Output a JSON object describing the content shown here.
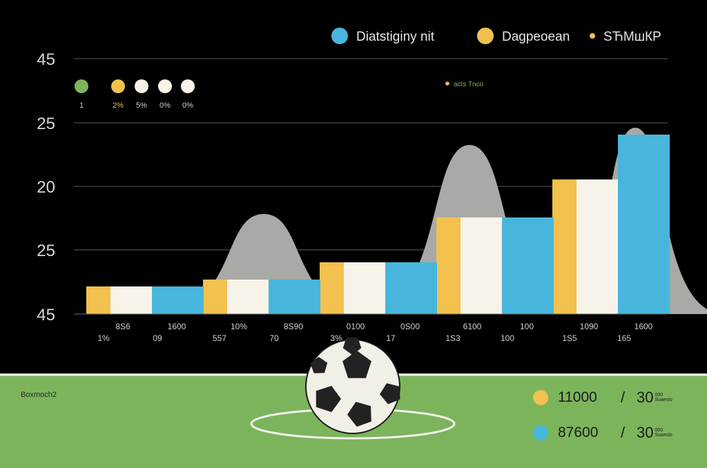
{
  "chart_data": {
    "type": "bar",
    "title": "",
    "xlabel": "",
    "ylabel": "",
    "y_tick_labels": [
      "45",
      "25",
      "20",
      "25",
      "45"
    ],
    "grid": true,
    "legend_position": "top-right",
    "legend": [
      {
        "label": "Diatstigіny nit",
        "color": "#48b6dc"
      },
      {
        "label": "Dagpeoean",
        "color": "#f0c150"
      },
      {
        "label": "ЅЋMшКР",
        "color": "#f0c150"
      }
    ],
    "series": [
      {
        "name": "",
        "color": "#f2c14e",
        "values": [
          0.8,
          1.0,
          1.5,
          2.8,
          3.9
        ]
      },
      {
        "name": "",
        "color": "#f7f3e8",
        "values": [
          0.8,
          1.0,
          1.5,
          2.8,
          3.9
        ]
      },
      {
        "name": "",
        "color": "#48b6dc",
        "values": [
          0.8,
          1.0,
          1.5,
          2.8,
          5.2
        ]
      }
    ],
    "peaks": [
      2.9,
      4.9,
      5.4
    ],
    "bottom_labels": [
      {
        "top": "8Ѕ6",
        "bottom": "1%"
      },
      {
        "top": "1600",
        "bottom": "09"
      },
      {
        "top": "10%",
        "bottom": "557"
      },
      {
        "top": "8Ѕ90",
        "bottom": "70"
      },
      {
        "top": "0100",
        "bottom": "3%"
      },
      {
        "top": "0Ѕ00",
        "bottom": "17"
      },
      {
        "top": "6100",
        "bottom": "1Ѕ3"
      },
      {
        "top": "100",
        "bottom": "100"
      },
      {
        "top": "1090",
        "bottom": "1Ѕ5"
      },
      {
        "top": "1600",
        "bottom": "165"
      }
    ],
    "markers": [
      {
        "color": "#7cb45c",
        "label": "1"
      },
      {
        "color": "#f2c14e",
        "label": "2%"
      },
      {
        "color": "#f7f3e8",
        "label": "5%"
      },
      {
        "color": "#f7f3e8",
        "label": "0%"
      },
      {
        "color": "#f7f3e8",
        "label": "0%"
      }
    ],
    "annotation": {
      "label": "acts Tnco",
      "color": "#7cb45c",
      "dot_color": "#f2c14e"
    }
  },
  "field": {
    "label": "Boxmoch2",
    "color": "#7cb45c"
  },
  "stats": [
    {
      "color": "#f2c14e",
      "value": "11000",
      "separator": "/",
      "score": "30",
      "sub": [
        "000",
        "Ѕuaeslo"
      ]
    },
    {
      "color": "#48b6dc",
      "value": "87600",
      "separator": "/",
      "score": "30",
      "sub": [
        "000",
        "Ѕuaeslo"
      ]
    }
  ]
}
